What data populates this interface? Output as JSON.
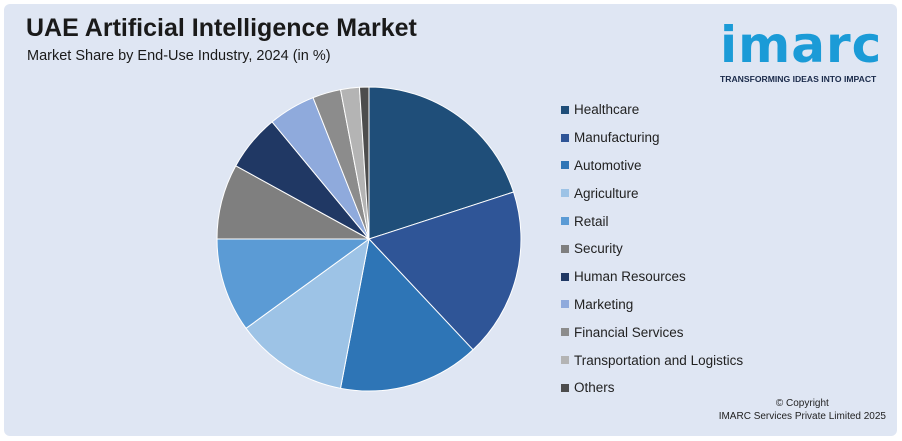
{
  "title": "UAE Artificial Intelligence Market",
  "subtitle": "Market Share by End-Use Industry, 2024 (in %)",
  "logo": {
    "word": "imarc",
    "tagline": "TRANSFORMING IDEAS INTO IMPACT",
    "color": "#1b9bd7"
  },
  "copyright": {
    "line1": "© Copyright",
    "line2": "IMARC Services Private Limited 2025"
  },
  "chart_data": {
    "type": "pie",
    "title": "UAE Artificial Intelligence Market",
    "subtitle": "Market Share by End-Use Industry, 2024 (in %)",
    "legend_position": "right",
    "start_angle_deg": 0,
    "direction": "clockwise",
    "slices": [
      {
        "label": "Healthcare",
        "value": 20,
        "color": "#1f4e79"
      },
      {
        "label": "Manufacturing",
        "value": 18,
        "color": "#2f5597"
      },
      {
        "label": "Automotive",
        "value": 15,
        "color": "#2e75b6"
      },
      {
        "label": "Agriculture",
        "value": 12,
        "color": "#9dc3e6"
      },
      {
        "label": "Retail",
        "value": 10,
        "color": "#5b9bd5"
      },
      {
        "label": "Security",
        "value": 8,
        "color": "#7f7f7f"
      },
      {
        "label": "Human Resources",
        "value": 6,
        "color": "#203864"
      },
      {
        "label": "Marketing",
        "value": 5,
        "color": "#8faadc"
      },
      {
        "label": "Financial Services",
        "value": 3,
        "color": "#8c8c8c"
      },
      {
        "label": "Transportation and Logistics",
        "value": 2,
        "color": "#b4b4b4"
      },
      {
        "label": "Others",
        "value": 1,
        "color": "#4d4d4d"
      }
    ]
  }
}
